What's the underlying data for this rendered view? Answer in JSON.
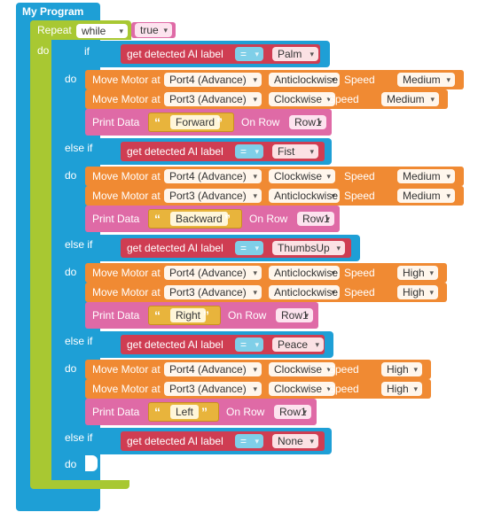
{
  "program": {
    "title": "My Program"
  },
  "loop": {
    "label": "Repeat",
    "mode": "while",
    "condition": "true",
    "do_label": "do"
  },
  "conditional": {
    "if_label": "if",
    "else_if_label": "else if",
    "do_label": "do",
    "gear_icon": "gear-icon"
  },
  "common": {
    "ai_label": "get detected AI label",
    "equals": "=",
    "move_motor": "Move Motor at",
    "speed": "Speed",
    "print_data": "Print Data",
    "on_row": "On Row",
    "open_quote": "“",
    "close_quote": "”"
  },
  "branches": [
    {
      "ai_value": "Palm",
      "motors": [
        {
          "port": "Port4 (Advance)",
          "direction": "Anticlockwise",
          "speed": "Medium"
        },
        {
          "port": "Port3 (Advance)",
          "direction": "Clockwise",
          "speed": "Medium"
        }
      ],
      "print": {
        "text": "Forward",
        "row": "Row1"
      }
    },
    {
      "ai_value": "Fist",
      "motors": [
        {
          "port": "Port4 (Advance)",
          "direction": "Clockwise",
          "speed": "Medium"
        },
        {
          "port": "Port3 (Advance)",
          "direction": "Anticlockwise",
          "speed": "Medium"
        }
      ],
      "print": {
        "text": "Backward",
        "row": "Row1"
      }
    },
    {
      "ai_value": "ThumbsUp",
      "motors": [
        {
          "port": "Port4 (Advance)",
          "direction": "Anticlockwise",
          "speed": "High"
        },
        {
          "port": "Port3 (Advance)",
          "direction": "Anticlockwise",
          "speed": "High"
        }
      ],
      "print": {
        "text": "Right",
        "row": "Row1"
      }
    },
    {
      "ai_value": "Peace",
      "motors": [
        {
          "port": "Port4 (Advance)",
          "direction": "Clockwise",
          "speed": "High"
        },
        {
          "port": "Port3 (Advance)",
          "direction": "Clockwise",
          "speed": "High"
        }
      ],
      "print": {
        "text": "Left",
        "row": "Row1"
      }
    },
    {
      "ai_value": "None",
      "motors": [],
      "print": null
    }
  ]
}
